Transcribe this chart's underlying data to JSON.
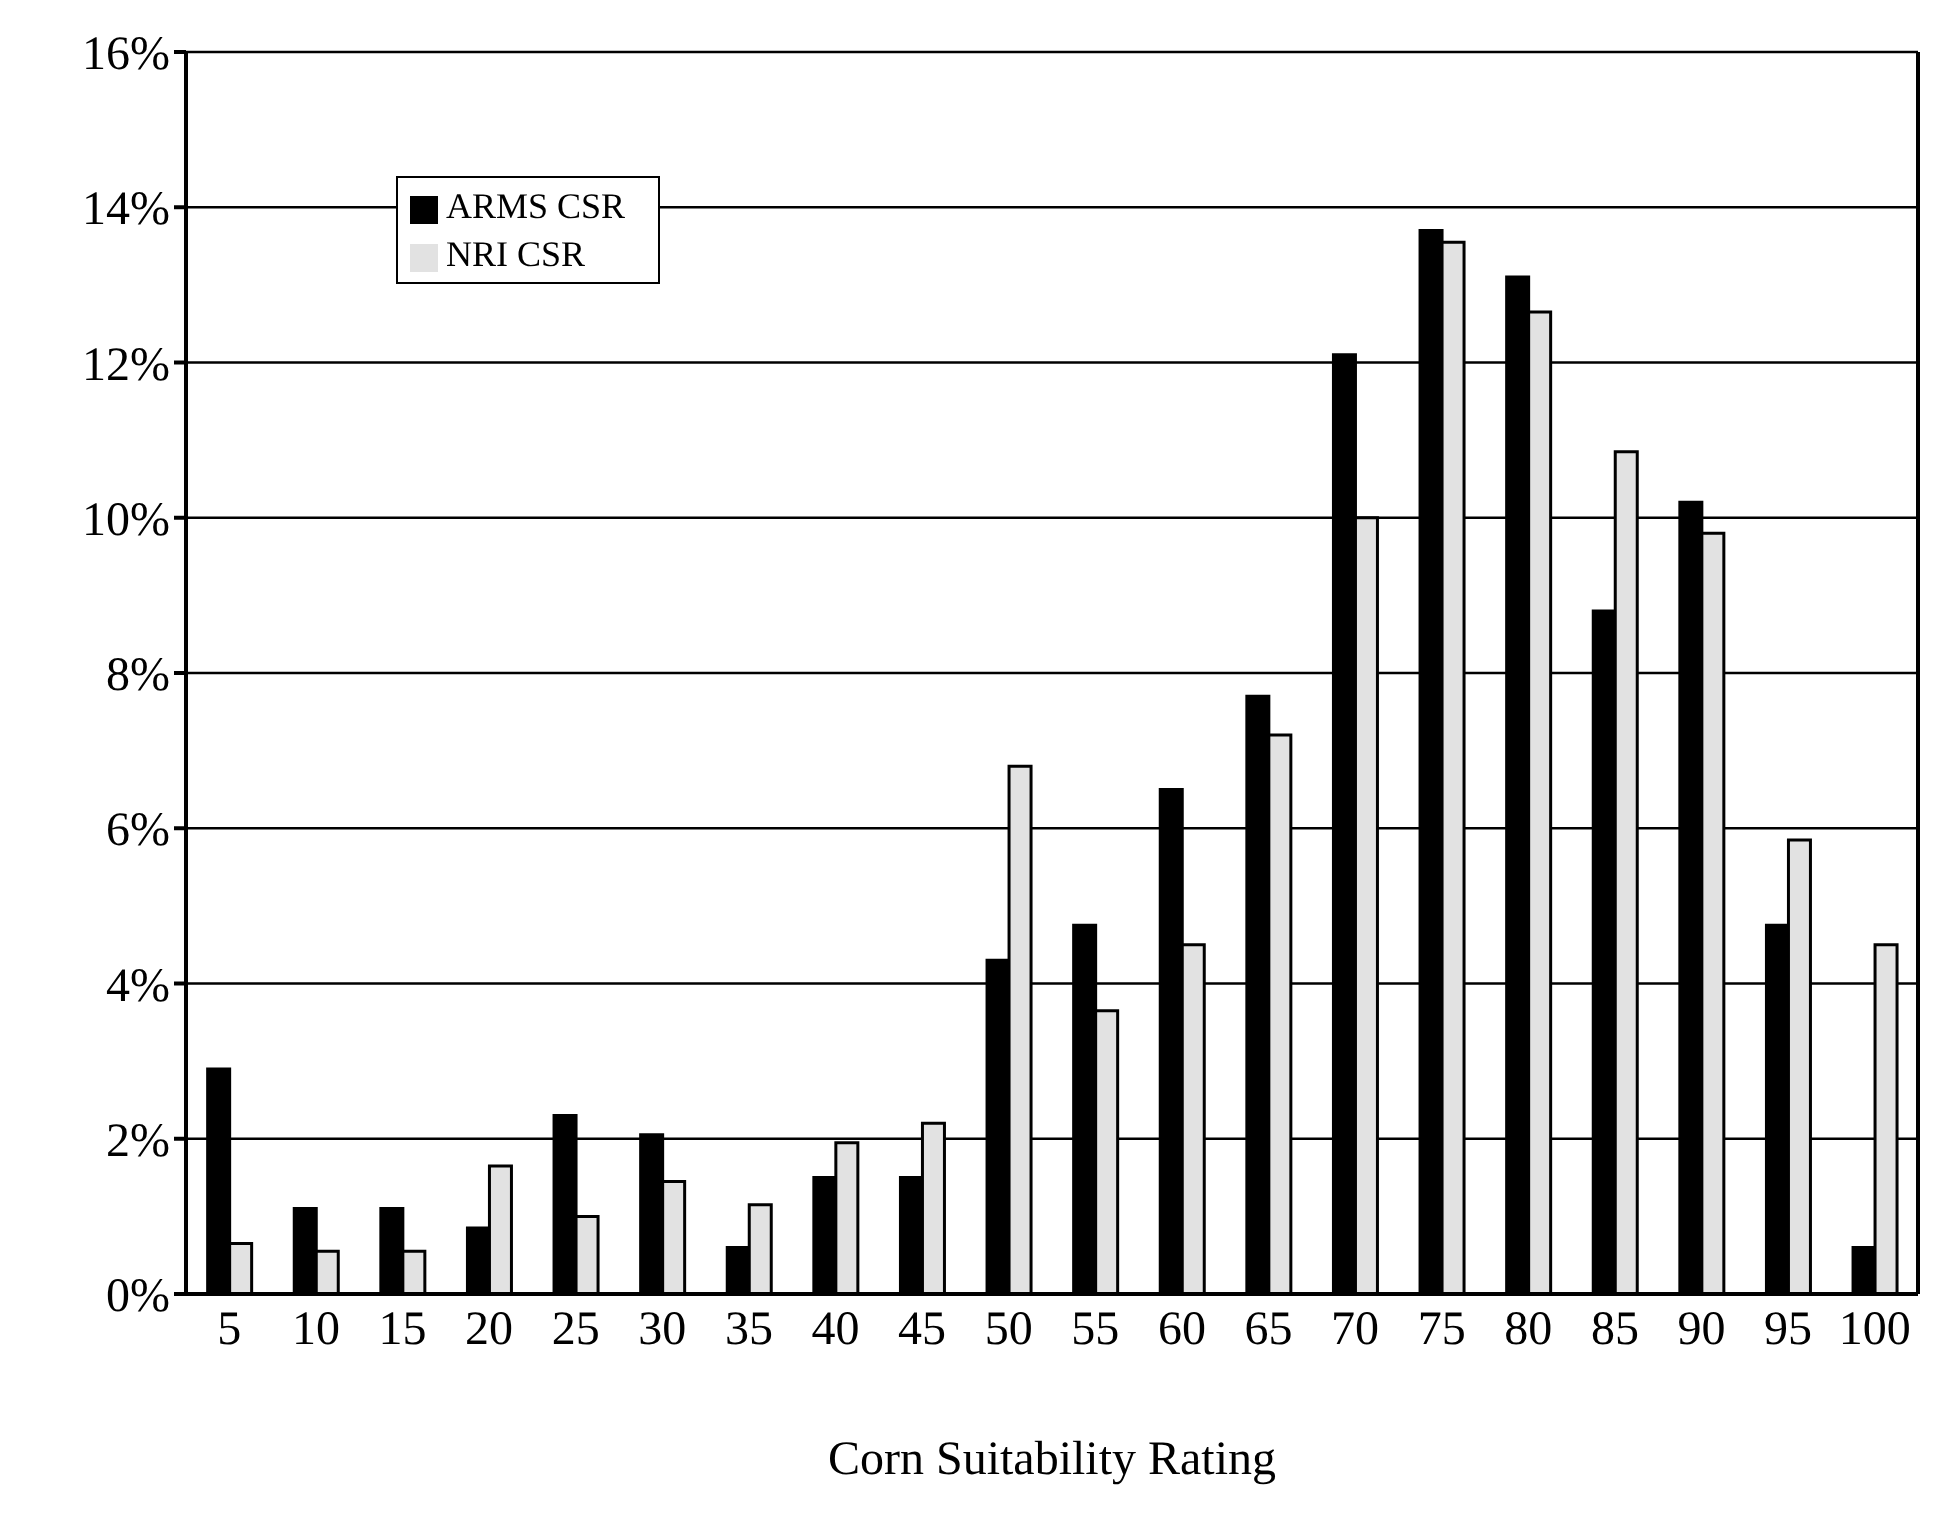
{
  "chart_data": {
    "type": "bar",
    "xlabel": "Corn Suitability Rating",
    "categories": [
      "5",
      "10",
      "15",
      "20",
      "25",
      "30",
      "35",
      "40",
      "45",
      "50",
      "55",
      "60",
      "65",
      "70",
      "75",
      "80",
      "85",
      "90",
      "95",
      "100"
    ],
    "series": [
      {
        "name": "ARMS CSR",
        "color": "#000000",
        "values": [
          2.9,
          1.1,
          1.1,
          0.85,
          2.3,
          2.05,
          0.6,
          1.5,
          1.5,
          4.3,
          4.75,
          6.5,
          7.7,
          12.1,
          13.7,
          13.1,
          8.8,
          10.2,
          4.75,
          0.6
        ]
      },
      {
        "name": "NRI CSR",
        "color": "#e2e2e2",
        "values": [
          0.65,
          0.55,
          0.55,
          1.65,
          1.0,
          1.45,
          1.15,
          1.95,
          2.2,
          6.8,
          3.65,
          4.5,
          7.2,
          10.0,
          13.55,
          12.65,
          10.85,
          9.8,
          5.85,
          4.5
        ]
      }
    ],
    "ylim": [
      0,
      16
    ],
    "yticks": [
      {
        "value": 0,
        "label": "0%"
      },
      {
        "value": 2,
        "label": "2%"
      },
      {
        "value": 4,
        "label": "4%"
      },
      {
        "value": 6,
        "label": "6%"
      },
      {
        "value": 8,
        "label": "8%"
      },
      {
        "value": 10,
        "label": "10%"
      },
      {
        "value": 12,
        "label": "12%"
      },
      {
        "value": 14,
        "label": "14%"
      },
      {
        "value": 16,
        "label": "16%"
      }
    ],
    "grid": "y",
    "legend": "top left"
  }
}
